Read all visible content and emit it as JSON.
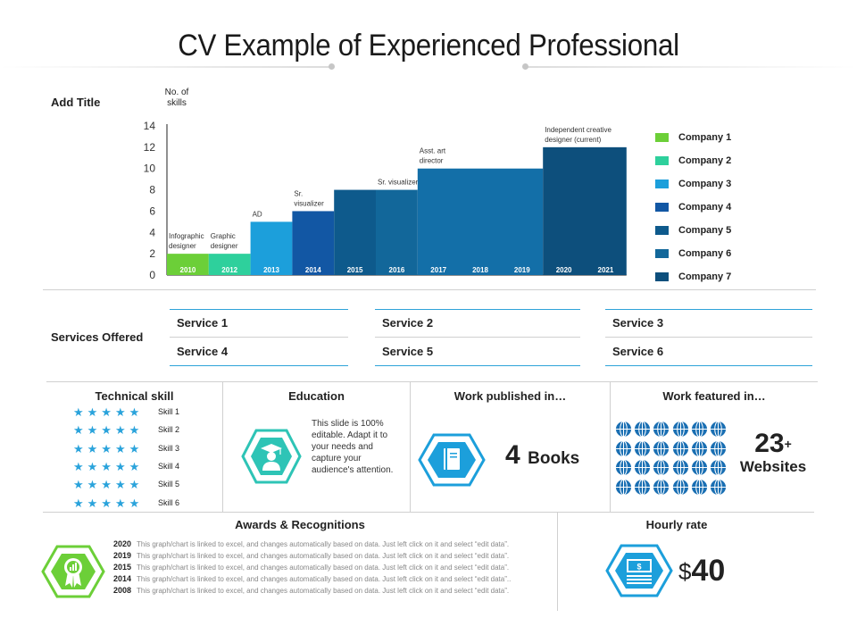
{
  "title": "CV Example of Experienced Professional",
  "chart_section": {
    "heading": "Add Title",
    "y_axis_label_line1": "No. of",
    "y_axis_label_line2": "skills"
  },
  "chart_data": {
    "type": "bar",
    "ylabel": "No. of skills",
    "ylim": [
      0,
      14
    ],
    "yticks": [
      0,
      2,
      4,
      6,
      8,
      10,
      12,
      14
    ],
    "bars": [
      {
        "years": [
          "2010"
        ],
        "value": 2,
        "color": "#6ccf38",
        "annotation": [
          "Infographic",
          "designer"
        ]
      },
      {
        "years": [
          "2012"
        ],
        "value": 2,
        "color": "#2ed09c",
        "annotation": [
          "Graphic",
          "designer"
        ]
      },
      {
        "years": [
          "2013"
        ],
        "value": 5,
        "color": "#1c9fdb",
        "annotation": [
          "AD"
        ]
      },
      {
        "years": [
          "2014"
        ],
        "value": 6,
        "color": "#1257a4",
        "annotation": [
          "Sr.",
          "visualizer"
        ]
      },
      {
        "years": [
          "2015"
        ],
        "value": 8,
        "color": "#0e5a8c",
        "annotation": []
      },
      {
        "years": [
          "2016"
        ],
        "value": 8,
        "color": "#12679a",
        "annotation": [
          "Sr. visualizer"
        ]
      },
      {
        "years": [
          "2017",
          "2018",
          "2019"
        ],
        "value": 10,
        "color": "#136fa8",
        "annotation": [
          "Asst. art",
          "director"
        ]
      },
      {
        "years": [
          "2020",
          "2021"
        ],
        "value": 12,
        "color": "#0d4f7c",
        "annotation": [
          "Independent creative",
          "designer (current)"
        ]
      }
    ],
    "legend": [
      "Company 1",
      "Company 2",
      "Company 3",
      "Company 4",
      "Company 5",
      "Company 6",
      "Company 7"
    ],
    "legend_colors": [
      "#6ccf38",
      "#2ed09c",
      "#1c9fdb",
      "#1257a4",
      "#0e5a8c",
      "#12679a",
      "#0d4f7c"
    ]
  },
  "services": {
    "title": "Services Offered",
    "items": [
      "Service 1",
      "Service 2",
      "Service 3",
      "Service 4",
      "Service 5",
      "Service 6"
    ]
  },
  "technical": {
    "title": "Technical skill",
    "skills": [
      {
        "label": "Skill 1",
        "stars": "★★★★★"
      },
      {
        "label": "Skill 2",
        "stars": "★★★★★"
      },
      {
        "label": "Skill 3",
        "stars": "★★★★★"
      },
      {
        "label": "Skill 4",
        "stars": "★★★★★"
      },
      {
        "label": "Skill 5",
        "stars": "★★★★★"
      },
      {
        "label": "Skill 6",
        "stars": "★★★★★"
      }
    ]
  },
  "education": {
    "title": "Education",
    "text_lines": [
      "This slide is 100%",
      "editable. Adapt it to",
      "your needs and",
      "capture your",
      "audience's attention."
    ],
    "icon": "graduate-icon"
  },
  "work_published": {
    "title": "Work published in…",
    "count": "4",
    "unit": "Books",
    "icon": "book-icon"
  },
  "work_featured": {
    "title": "Work featured in…",
    "count": "23",
    "plus": "+",
    "unit": "Websites",
    "icon": "globe-icon"
  },
  "awards": {
    "title": "Awards & Recognitions",
    "icon": "award-ribbon-icon",
    "rows": [
      {
        "year": "2020",
        "text": "This graph/chart is linked to excel, and changes automatically based on data. Just left click on it and select “edit data”."
      },
      {
        "year": "2019",
        "text": "This graph/chart is linked to excel, and changes automatically based on data. Just left click on it and select “edit data”."
      },
      {
        "year": "2015",
        "text": "This graph/chart is linked to excel, and changes automatically based on data. Just left click on it and select “edit data”."
      },
      {
        "year": "2014",
        "text": "This graph/chart is linked to excel, and changes automatically based on data. Just left click on it and select “edit data”.."
      },
      {
        "year": "2008",
        "text": "This graph/chart is linked to excel, and changes automatically based on data. Just left click on it and select “edit data”."
      }
    ]
  },
  "hourly": {
    "title": "Hourly rate",
    "currency": "$",
    "amount": "40",
    "icon": "money-icon"
  },
  "colors": {
    "accent": "#2aa3db",
    "teal": "#2ec4b6",
    "green": "#6ccf38",
    "navy": "#0d4f7c"
  }
}
